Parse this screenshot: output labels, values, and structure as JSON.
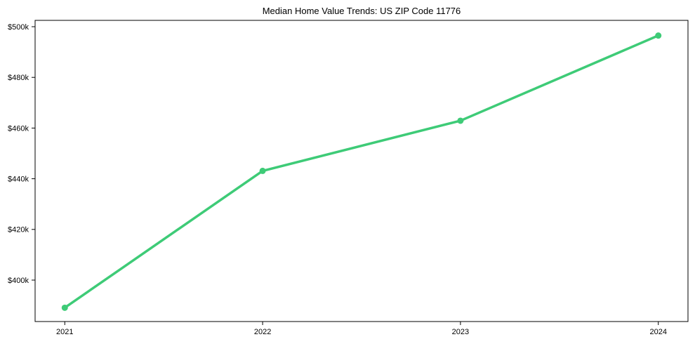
{
  "figure": {
    "background": "#ffffff",
    "axis_color": "#000000",
    "text_color": "#000000"
  },
  "chart_data": {
    "type": "line",
    "title": "Median Home Value Trends: US ZIP Code 11776",
    "x": [
      2021,
      2022,
      2023,
      2024
    ],
    "x_tick_labels": [
      "2021",
      "2022",
      "2023",
      "2024"
    ],
    "series": [
      {
        "values": [
          389100,
          443100,
          462900,
          496500
        ],
        "color": "#3ecb77",
        "marker": "circle",
        "line_width": 3.5,
        "marker_radius": 4.5
      }
    ],
    "y_ticks": [
      400000,
      420000,
      440000,
      460000,
      480000,
      500000
    ],
    "y_tick_labels": [
      "$400k",
      "$420k",
      "$440k",
      "$460k",
      "$480k",
      "$500k"
    ],
    "ylim": [
      383650,
      502500
    ],
    "xlim": [
      2020.85,
      2024.15
    ],
    "grid": false,
    "legend": "none"
  }
}
